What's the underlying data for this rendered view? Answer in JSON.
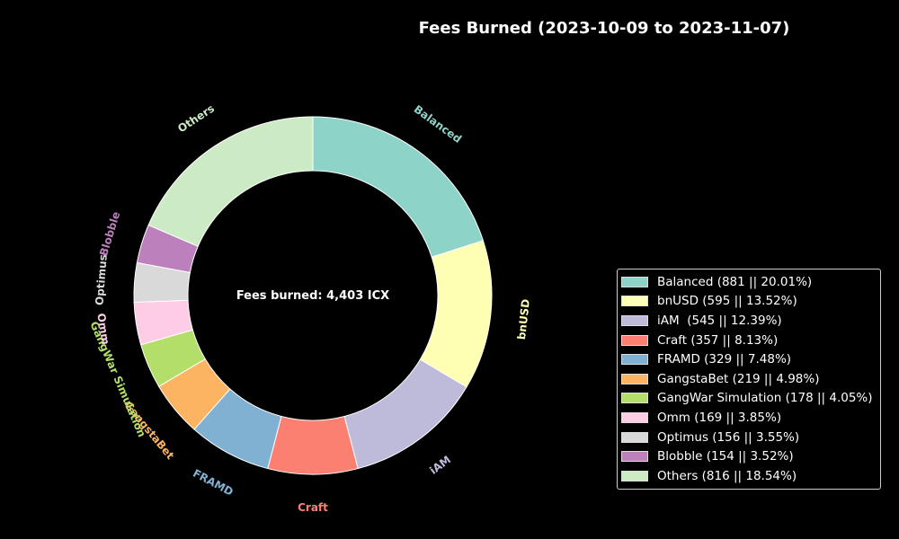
{
  "chart_data": {
    "type": "pie",
    "donut": true,
    "title": "Fees Burned (2023-10-09 to 2023-11-07)",
    "center_text": "Fees burned: 4,403 ICX",
    "legend_position": "right",
    "slices": [
      {
        "label": "Balanced",
        "value": 881,
        "percent": 20.01,
        "color": "#8dd3c7",
        "legend": "Balanced (881 || 20.01%)"
      },
      {
        "label": "bnUSD",
        "value": 595,
        "percent": 13.52,
        "color": "#ffffb3",
        "legend": "bnUSD (595 || 13.52%)"
      },
      {
        "label": "iAM",
        "value": 545,
        "percent": 12.39,
        "color": "#bebada",
        "legend": "iAM  (545 || 12.39%)"
      },
      {
        "label": "Craft",
        "value": 357,
        "percent": 8.13,
        "color": "#fb8072",
        "legend": "Craft (357 || 8.13%)"
      },
      {
        "label": "FRAMD",
        "value": 329,
        "percent": 7.48,
        "color": "#80b1d3",
        "legend": "FRAMD (329 || 7.48%)"
      },
      {
        "label": "GangstaBet",
        "value": 219,
        "percent": 4.98,
        "color": "#fdb462",
        "legend": "GangstaBet (219 || 4.98%)"
      },
      {
        "label": "GangWar Simulation",
        "value": 178,
        "percent": 4.05,
        "color": "#b3de69",
        "legend": "GangWar Simulation (178 || 4.05%)"
      },
      {
        "label": "Omm",
        "value": 169,
        "percent": 3.85,
        "color": "#fccde5",
        "legend": "Omm (169 || 3.85%)"
      },
      {
        "label": "Optimus",
        "value": 156,
        "percent": 3.55,
        "color": "#d9d9d9",
        "legend": "Optimus (156 || 3.55%)"
      },
      {
        "label": "Blobble",
        "value": 154,
        "percent": 3.52,
        "color": "#bc80bd",
        "legend": "Blobble (154 || 3.52%)"
      },
      {
        "label": "Others",
        "value": 816,
        "percent": 18.54,
        "color": "#ccebc5",
        "legend": "Others (816 || 18.54%)"
      }
    ]
  }
}
